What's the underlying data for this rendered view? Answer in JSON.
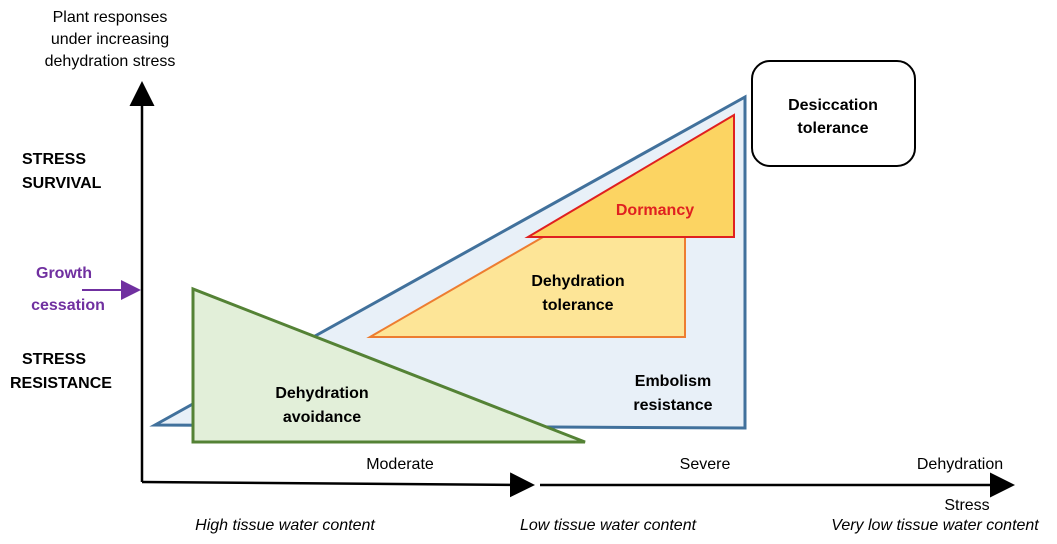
{
  "y_axis": {
    "title": [
      "Plant responses",
      "under increasing",
      "dehydration stress"
    ],
    "top_label": [
      "STRESS",
      "SURVIVAL"
    ],
    "bottom_label": [
      "STRESS",
      "RESISTANCE"
    ],
    "marker": [
      "Growth",
      "cessation"
    ]
  },
  "regions": {
    "desiccation": [
      "Desiccation",
      "tolerance"
    ],
    "dormancy": "Dormancy",
    "dehydration_tolerance": [
      "Dehydration",
      "tolerance"
    ],
    "embolism": [
      "Embolism",
      "resistance"
    ],
    "avoidance": [
      "Dehydration",
      "avoidance"
    ]
  },
  "x_axis": {
    "levels": [
      "Moderate",
      "Severe",
      "Dehydration"
    ],
    "stress": "Stress",
    "water": [
      "High tissue water content",
      "Low tissue water content",
      "Very low tissue water content"
    ]
  }
}
